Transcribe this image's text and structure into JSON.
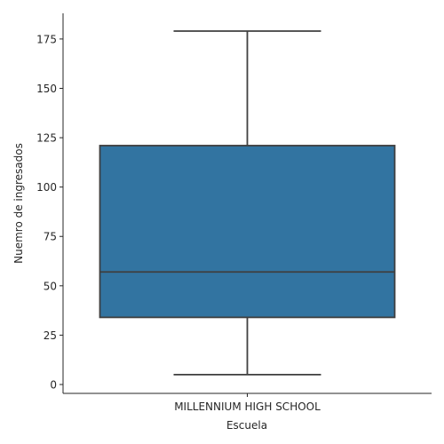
{
  "chart_data": {
    "type": "box",
    "xlabel": "Escuela",
    "ylabel": "Nuemro de ingresados",
    "categories": [
      "MILLENNIUM HIGH SCHOOL"
    ],
    "boxes": [
      {
        "category": "MILLENNIUM HIGH SCHOOL",
        "whisker_low": 5,
        "q1": 34,
        "median": 57,
        "q3": 121,
        "whisker_high": 179
      }
    ],
    "ylim": [
      -4.5,
      188
    ],
    "yticks": [
      0,
      25,
      50,
      75,
      100,
      125,
      150,
      175
    ],
    "grid": false,
    "box_color": "#3274a1",
    "line_color": "#3f3f3f"
  }
}
